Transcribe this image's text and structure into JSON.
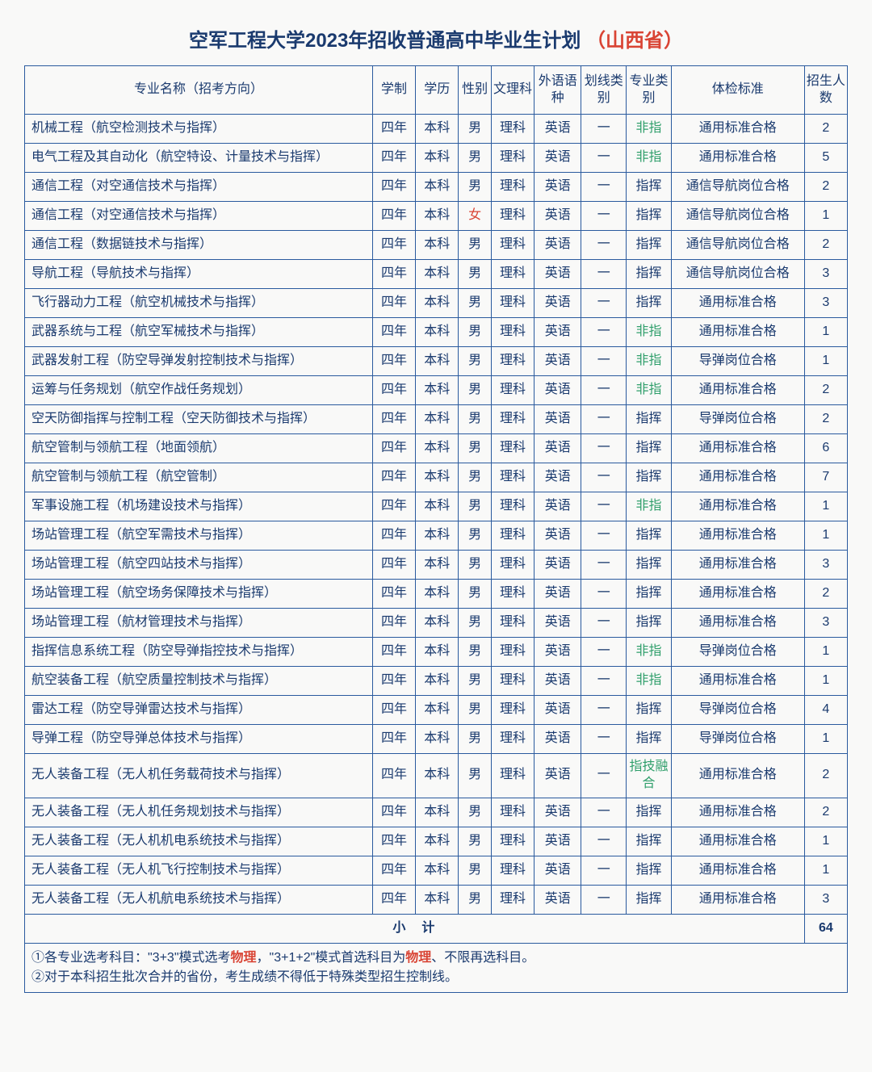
{
  "title": {
    "main": "空军工程大学2023年招收普通高中毕业生计划",
    "province": "（山西省）"
  },
  "headers": {
    "major": "专业名称（招考方向）",
    "duration": "学制",
    "degree": "学历",
    "sex": "性别",
    "science": "文理科",
    "language": "外语语种",
    "line": "划线类别",
    "type": "专业类别",
    "exam": "体检标准",
    "num": "招生人数"
  },
  "rows": [
    {
      "major": "机械工程（航空检测技术与指挥）",
      "dur": "四年",
      "deg": "本科",
      "sex": "男",
      "sci": "理科",
      "lang": "英语",
      "line": "一",
      "type": "非指",
      "type_cls": "green",
      "exam": "通用标准合格",
      "num": "2"
    },
    {
      "major": "电气工程及其自动化（航空特设、计量技术与指挥）",
      "dur": "四年",
      "deg": "本科",
      "sex": "男",
      "sci": "理科",
      "lang": "英语",
      "line": "一",
      "type": "非指",
      "type_cls": "green",
      "exam": "通用标准合格",
      "num": "5"
    },
    {
      "major": "通信工程（对空通信技术与指挥）",
      "dur": "四年",
      "deg": "本科",
      "sex": "男",
      "sci": "理科",
      "lang": "英语",
      "line": "一",
      "type": "指挥",
      "type_cls": "",
      "exam": "通信导航岗位合格",
      "num": "2"
    },
    {
      "major": "通信工程（对空通信技术与指挥）",
      "dur": "四年",
      "deg": "本科",
      "sex": "女",
      "sex_cls": "red-text",
      "sci": "理科",
      "lang": "英语",
      "line": "一",
      "type": "指挥",
      "type_cls": "",
      "exam": "通信导航岗位合格",
      "num": "1"
    },
    {
      "major": "通信工程（数据链技术与指挥）",
      "dur": "四年",
      "deg": "本科",
      "sex": "男",
      "sci": "理科",
      "lang": "英语",
      "line": "一",
      "type": "指挥",
      "type_cls": "",
      "exam": "通信导航岗位合格",
      "num": "2"
    },
    {
      "major": "导航工程（导航技术与指挥）",
      "dur": "四年",
      "deg": "本科",
      "sex": "男",
      "sci": "理科",
      "lang": "英语",
      "line": "一",
      "type": "指挥",
      "type_cls": "",
      "exam": "通信导航岗位合格",
      "num": "3"
    },
    {
      "major": "飞行器动力工程（航空机械技术与指挥）",
      "dur": "四年",
      "deg": "本科",
      "sex": "男",
      "sci": "理科",
      "lang": "英语",
      "line": "一",
      "type": "指挥",
      "type_cls": "",
      "exam": "通用标准合格",
      "num": "3"
    },
    {
      "major": "武器系统与工程（航空军械技术与指挥）",
      "dur": "四年",
      "deg": "本科",
      "sex": "男",
      "sci": "理科",
      "lang": "英语",
      "line": "一",
      "type": "非指",
      "type_cls": "green",
      "exam": "通用标准合格",
      "num": "1"
    },
    {
      "major": "武器发射工程（防空导弹发射控制技术与指挥）",
      "dur": "四年",
      "deg": "本科",
      "sex": "男",
      "sci": "理科",
      "lang": "英语",
      "line": "一",
      "type": "非指",
      "type_cls": "green",
      "exam": "导弹岗位合格",
      "num": "1"
    },
    {
      "major": "运筹与任务规划（航空作战任务规划）",
      "dur": "四年",
      "deg": "本科",
      "sex": "男",
      "sci": "理科",
      "lang": "英语",
      "line": "一",
      "type": "非指",
      "type_cls": "green",
      "exam": "通用标准合格",
      "num": "2"
    },
    {
      "major": "空天防御指挥与控制工程（空天防御技术与指挥）",
      "dur": "四年",
      "deg": "本科",
      "sex": "男",
      "sci": "理科",
      "lang": "英语",
      "line": "一",
      "type": "指挥",
      "type_cls": "",
      "exam": "导弹岗位合格",
      "num": "2"
    },
    {
      "major": "航空管制与领航工程（地面领航）",
      "dur": "四年",
      "deg": "本科",
      "sex": "男",
      "sci": "理科",
      "lang": "英语",
      "line": "一",
      "type": "指挥",
      "type_cls": "",
      "exam": "通用标准合格",
      "num": "6"
    },
    {
      "major": "航空管制与领航工程（航空管制）",
      "dur": "四年",
      "deg": "本科",
      "sex": "男",
      "sci": "理科",
      "lang": "英语",
      "line": "一",
      "type": "指挥",
      "type_cls": "",
      "exam": "通用标准合格",
      "num": "7"
    },
    {
      "major": "军事设施工程（机场建设技术与指挥）",
      "dur": "四年",
      "deg": "本科",
      "sex": "男",
      "sci": "理科",
      "lang": "英语",
      "line": "一",
      "type": "非指",
      "type_cls": "green",
      "exam": "通用标准合格",
      "num": "1"
    },
    {
      "major": "场站管理工程（航空军需技术与指挥）",
      "dur": "四年",
      "deg": "本科",
      "sex": "男",
      "sci": "理科",
      "lang": "英语",
      "line": "一",
      "type": "指挥",
      "type_cls": "",
      "exam": "通用标准合格",
      "num": "1"
    },
    {
      "major": "场站管理工程（航空四站技术与指挥）",
      "dur": "四年",
      "deg": "本科",
      "sex": "男",
      "sci": "理科",
      "lang": "英语",
      "line": "一",
      "type": "指挥",
      "type_cls": "",
      "exam": "通用标准合格",
      "num": "3"
    },
    {
      "major": "场站管理工程（航空场务保障技术与指挥）",
      "dur": "四年",
      "deg": "本科",
      "sex": "男",
      "sci": "理科",
      "lang": "英语",
      "line": "一",
      "type": "指挥",
      "type_cls": "",
      "exam": "通用标准合格",
      "num": "2"
    },
    {
      "major": "场站管理工程（航材管理技术与指挥）",
      "dur": "四年",
      "deg": "本科",
      "sex": "男",
      "sci": "理科",
      "lang": "英语",
      "line": "一",
      "type": "指挥",
      "type_cls": "",
      "exam": "通用标准合格",
      "num": "3"
    },
    {
      "major": "指挥信息系统工程（防空导弹指控技术与指挥）",
      "dur": "四年",
      "deg": "本科",
      "sex": "男",
      "sci": "理科",
      "lang": "英语",
      "line": "一",
      "type": "非指",
      "type_cls": "green",
      "exam": "导弹岗位合格",
      "num": "1"
    },
    {
      "major": "航空装备工程（航空质量控制技术与指挥）",
      "dur": "四年",
      "deg": "本科",
      "sex": "男",
      "sci": "理科",
      "lang": "英语",
      "line": "一",
      "type": "非指",
      "type_cls": "green",
      "exam": "通用标准合格",
      "num": "1"
    },
    {
      "major": "雷达工程（防空导弹雷达技术与指挥）",
      "dur": "四年",
      "deg": "本科",
      "sex": "男",
      "sci": "理科",
      "lang": "英语",
      "line": "一",
      "type": "指挥",
      "type_cls": "",
      "exam": "导弹岗位合格",
      "num": "4"
    },
    {
      "major": "导弹工程（防空导弹总体技术与指挥）",
      "dur": "四年",
      "deg": "本科",
      "sex": "男",
      "sci": "理科",
      "lang": "英语",
      "line": "一",
      "type": "指挥",
      "type_cls": "",
      "exam": "导弹岗位合格",
      "num": "1"
    },
    {
      "major": "无人装备工程（无人机任务载荷技术与指挥）",
      "dur": "四年",
      "deg": "本科",
      "sex": "男",
      "sci": "理科",
      "lang": "英语",
      "line": "一",
      "type": "指技融合",
      "type_cls": "green",
      "exam": "通用标准合格",
      "num": "2"
    },
    {
      "major": "无人装备工程（无人机任务规划技术与指挥）",
      "dur": "四年",
      "deg": "本科",
      "sex": "男",
      "sci": "理科",
      "lang": "英语",
      "line": "一",
      "type": "指挥",
      "type_cls": "",
      "exam": "通用标准合格",
      "num": "2"
    },
    {
      "major": "无人装备工程（无人机机电系统技术与指挥）",
      "dur": "四年",
      "deg": "本科",
      "sex": "男",
      "sci": "理科",
      "lang": "英语",
      "line": "一",
      "type": "指挥",
      "type_cls": "",
      "exam": "通用标准合格",
      "num": "1"
    },
    {
      "major": "无人装备工程（无人机飞行控制技术与指挥）",
      "dur": "四年",
      "deg": "本科",
      "sex": "男",
      "sci": "理科",
      "lang": "英语",
      "line": "一",
      "type": "指挥",
      "type_cls": "",
      "exam": "通用标准合格",
      "num": "1"
    },
    {
      "major": "无人装备工程（无人机航电系统技术与指挥）",
      "dur": "四年",
      "deg": "本科",
      "sex": "男",
      "sci": "理科",
      "lang": "英语",
      "line": "一",
      "type": "指挥",
      "type_cls": "",
      "exam": "通用标准合格",
      "num": "3"
    }
  ],
  "subtotal": {
    "label": "小计",
    "value": "64"
  },
  "footnote": {
    "line1a": "①各专业选考科目：\"3+3\"模式选考",
    "line1b": "物理",
    "line1c": "，\"3+1+2\"模式首选科目为",
    "line1d": "物理",
    "line1e": "、不限再选科目。",
    "line2": "②对于本科招生批次合并的省份，考生成绩不得低于特殊类型招生控制线。"
  }
}
